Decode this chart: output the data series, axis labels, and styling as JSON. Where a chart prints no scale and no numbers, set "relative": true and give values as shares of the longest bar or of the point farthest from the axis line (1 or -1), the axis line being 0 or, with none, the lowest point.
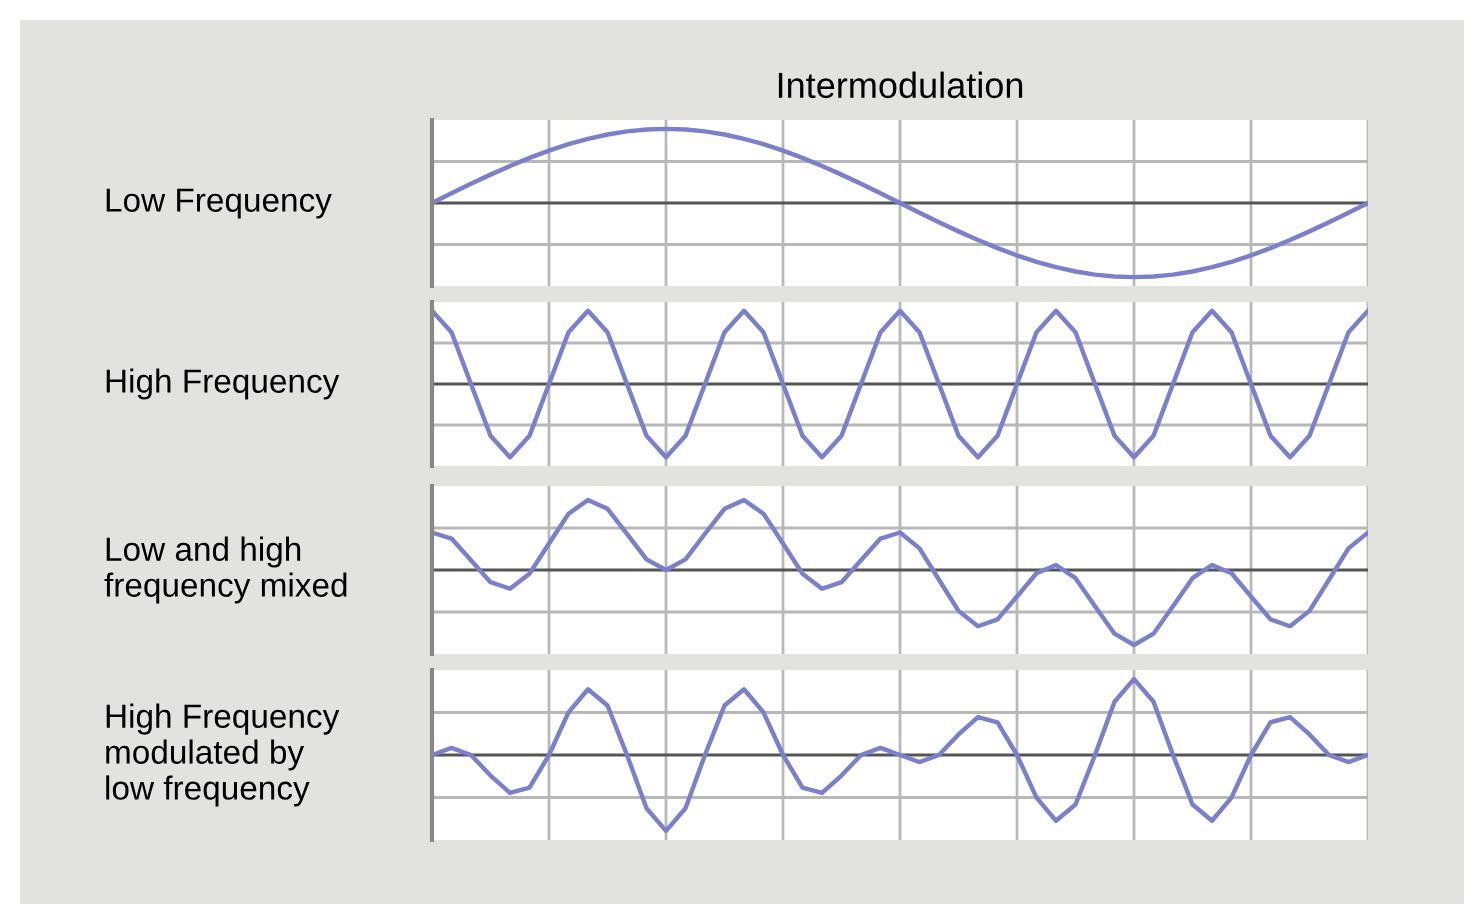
{
  "chart_data": [
    {
      "type": "line",
      "title": "Intermodulation",
      "ylabel": "Low Frequency",
      "relative": true,
      "grid": true,
      "tick_labels": false,
      "categories": [
        null,
        null,
        null,
        null,
        null,
        null,
        null,
        null,
        null,
        null,
        null,
        null,
        null,
        null,
        null,
        null,
        null,
        null,
        null,
        null,
        null,
        null,
        null,
        null,
        null,
        null,
        null,
        null,
        null,
        null,
        null,
        null,
        null,
        null,
        null,
        null,
        null,
        null,
        null,
        null,
        null,
        null,
        null,
        null,
        null,
        null,
        null,
        null,
        null
      ],
      "series": [
        {
          "color": "#7b80cc",
          "values": [
            0,
            0.131,
            0.259,
            0.383,
            0.5,
            0.609,
            0.707,
            0.793,
            0.866,
            0.924,
            0.966,
            0.991,
            1,
            0.991,
            0.966,
            0.924,
            0.866,
            0.793,
            0.707,
            0.609,
            0.5,
            0.383,
            0.259,
            0.131,
            0,
            -0.131,
            -0.259,
            -0.383,
            -0.5,
            -0.609,
            -0.707,
            -0.793,
            -0.866,
            -0.924,
            -0.966,
            -0.991,
            -1,
            -0.991,
            -0.966,
            -0.924,
            -0.866,
            -0.793,
            -0.707,
            -0.609,
            -0.5,
            -0.383,
            -0.259,
            -0.131,
            0
          ]
        }
      ]
    },
    {
      "type": "line",
      "ylabel": "High Frequency",
      "relative": true,
      "grid": true,
      "tick_labels": false,
      "categories": [
        null,
        null,
        null,
        null,
        null,
        null,
        null,
        null,
        null,
        null,
        null,
        null,
        null,
        null,
        null,
        null,
        null,
        null,
        null,
        null,
        null,
        null,
        null,
        null,
        null,
        null,
        null,
        null,
        null,
        null,
        null,
        null,
        null,
        null,
        null,
        null,
        null,
        null,
        null,
        null,
        null,
        null,
        null,
        null,
        null,
        null,
        null,
        null,
        null
      ],
      "series": [
        {
          "color": "#7b80cc",
          "values": [
            1,
            0.707,
            0,
            -0.707,
            -1,
            -0.707,
            0,
            0.707,
            1,
            0.707,
            0,
            -0.707,
            -1,
            -0.707,
            0,
            0.707,
            1,
            0.707,
            0,
            -0.707,
            -1,
            -0.707,
            0,
            0.707,
            1,
            0.707,
            0,
            -0.707,
            -1,
            -0.707,
            0,
            0.707,
            1,
            0.707,
            0,
            -0.707,
            -1,
            -0.707,
            0,
            0.707,
            1,
            0.707,
            0,
            -0.707,
            -1,
            -0.707,
            0,
            0.707,
            1
          ]
        }
      ]
    },
    {
      "type": "line",
      "ylabel": "Low and high\nfrequency mixed",
      "relative": true,
      "grid": true,
      "tick_labels": false,
      "categories": [
        null,
        null,
        null,
        null,
        null,
        null,
        null,
        null,
        null,
        null,
        null,
        null,
        null,
        null,
        null,
        null,
        null,
        null,
        null,
        null,
        null,
        null,
        null,
        null,
        null,
        null,
        null,
        null,
        null,
        null,
        null,
        null,
        null,
        null,
        null,
        null,
        null,
        null,
        null,
        null,
        null,
        null,
        null,
        null,
        null,
        null,
        null,
        null,
        null
      ],
      "series": [
        {
          "color": "#7b80cc",
          "values": [
            0.5,
            0.419,
            0.13,
            -0.162,
            -0.25,
            -0.049,
            0.354,
            0.75,
            0.933,
            0.816,
            0.483,
            0.142,
            0,
            0.142,
            0.483,
            0.816,
            0.933,
            0.75,
            0.354,
            -0.049,
            -0.25,
            -0.162,
            0.13,
            0.419,
            0.5,
            0.288,
            -0.13,
            -0.545,
            -0.75,
            -0.658,
            -0.354,
            -0.043,
            0.067,
            -0.109,
            -0.483,
            -0.849,
            -1,
            -0.849,
            -0.483,
            -0.109,
            0.067,
            -0.043,
            -0.354,
            -0.658,
            -0.75,
            -0.545,
            -0.13,
            0.288,
            0.5
          ]
        }
      ]
    },
    {
      "type": "line",
      "ylabel": "High Frequency\nmodulated by\nlow frequency",
      "relative": true,
      "grid": true,
      "tick_labels": false,
      "categories": [
        null,
        null,
        null,
        null,
        null,
        null,
        null,
        null,
        null,
        null,
        null,
        null,
        null,
        null,
        null,
        null,
        null,
        null,
        null,
        null,
        null,
        null,
        null,
        null,
        null,
        null,
        null,
        null,
        null,
        null,
        null,
        null,
        null,
        null,
        null,
        null,
        null,
        null,
        null,
        null,
        null,
        null,
        null,
        null,
        null,
        null,
        null,
        null,
        null
      ],
      "series": [
        {
          "color": "#7b80cc",
          "values": [
            0,
            0.093,
            0,
            -0.271,
            -0.5,
            -0.431,
            0,
            0.561,
            0.866,
            0.653,
            0,
            -0.701,
            -1,
            -0.701,
            0,
            0.653,
            0.866,
            0.561,
            0,
            -0.431,
            -0.5,
            -0.271,
            0,
            0.093,
            0,
            -0.093,
            0,
            0.271,
            0.5,
            0.431,
            0,
            -0.561,
            -0.866,
            -0.653,
            0,
            0.701,
            1,
            0.701,
            0,
            -0.653,
            -0.866,
            -0.561,
            0,
            0.431,
            0.5,
            0.271,
            0,
            -0.093,
            0
          ]
        }
      ]
    }
  ]
}
